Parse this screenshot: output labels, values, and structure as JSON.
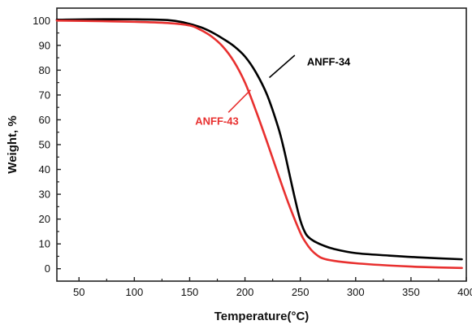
{
  "chart_data": {
    "type": "line",
    "title": "",
    "xlabel": "Temperature(°C)",
    "ylabel": "Weight, %",
    "xlim": [
      30,
      400
    ],
    "ylim": [
      -5,
      105
    ],
    "xticks": [
      50,
      100,
      150,
      200,
      250,
      300,
      350,
      400
    ],
    "yticks": [
      0,
      10,
      20,
      30,
      40,
      50,
      60,
      70,
      80,
      90,
      100
    ],
    "grid": false,
    "legend": "none",
    "series": [
      {
        "name": "ANFF-34",
        "color": "#000000",
        "x": [
          30,
          60,
          100,
          130,
          145,
          160,
          170,
          180,
          190,
          200,
          210,
          220,
          230,
          235,
          240,
          245,
          250,
          255,
          260,
          265,
          270,
          280,
          300,
          330,
          360,
          396
        ],
        "y": [
          100.3,
          100.5,
          100.5,
          100.2,
          99.2,
          97.3,
          95.3,
          92.7,
          89.7,
          85.5,
          79.0,
          70.0,
          57.0,
          48.5,
          38.5,
          28.5,
          19.5,
          14.0,
          11.8,
          10.5,
          9.5,
          8.0,
          6.3,
          5.3,
          4.5,
          3.8
        ]
      },
      {
        "name": "ANFF-43",
        "color": "#e8302f",
        "x": [
          30,
          60,
          100,
          130,
          150,
          160,
          170,
          180,
          190,
          200,
          210,
          220,
          230,
          240,
          250,
          255,
          260,
          265,
          270,
          280,
          300,
          330,
          360,
          396
        ],
        "y": [
          100.0,
          99.8,
          99.5,
          99.0,
          98.0,
          96.2,
          93.5,
          89.5,
          83.5,
          75.0,
          63.5,
          51.0,
          38.0,
          25.5,
          14.5,
          10.5,
          7.5,
          5.5,
          4.2,
          3.2,
          2.2,
          1.3,
          0.7,
          0.3
        ]
      }
    ],
    "annotations": [
      {
        "text": "ANFF-34",
        "color": "#000000",
        "x": 256,
        "y": 82,
        "arrow_from": [
          245,
          86
        ],
        "arrow_to": [
          222,
          77
        ]
      },
      {
        "text": "ANFF-43",
        "color": "#e8302f",
        "x": 155,
        "y": 58,
        "arrow_from": [
          185,
          63
        ],
        "arrow_to": [
          205,
          72
        ]
      }
    ]
  }
}
